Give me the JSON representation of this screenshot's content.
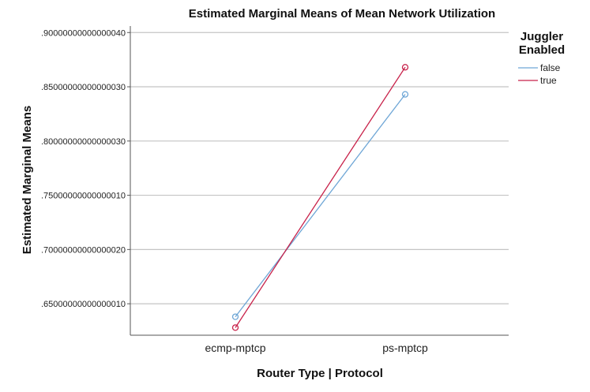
{
  "chart_data": {
    "type": "line",
    "title": "Estimated Marginal Means of Mean Network Utilization",
    "xlabel": "Router Type | Protocol",
    "ylabel": "Estimated Marginal Means",
    "categories": [
      "ecmp-mptcp",
      "ps-mptcp"
    ],
    "y_tick_labels": [
      ".90000000000000040",
      ".85000000000000030",
      ".80000000000000030",
      ".75000000000000010",
      ".70000000000000020",
      ".65000000000000010"
    ],
    "y_tick_values": [
      0.9,
      0.85,
      0.8,
      0.75,
      0.7,
      0.65
    ],
    "ylim": [
      0.621,
      0.906
    ],
    "grid": true,
    "legend_title": "Juggler Enabled",
    "legend_title_lines": [
      "Juggler",
      "Enabled"
    ],
    "legend_position": "right",
    "series": [
      {
        "name": "false",
        "values": [
          0.638,
          0.843
        ],
        "color": "#6ea6d6"
      },
      {
        "name": "true",
        "values": [
          0.628,
          0.868
        ],
        "color": "#c8224a"
      }
    ]
  }
}
